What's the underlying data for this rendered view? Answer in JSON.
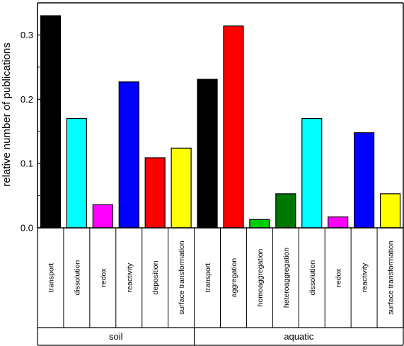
{
  "chart_data": {
    "type": "bar",
    "ylabel": "relative number of publications",
    "ylim": [
      0,
      0.35
    ],
    "yticks": [
      "0.0",
      "0.1",
      "0.2",
      "0.3"
    ],
    "tick_values": [
      0,
      0.1,
      0.2,
      0.3
    ],
    "grid": false,
    "groups": [
      {
        "name": "soil",
        "categories": [
          "transport",
          "dissolution",
          "redox",
          "reactivity",
          "deposition",
          "surface transformation"
        ],
        "values": [
          0.33,
          0.17,
          0.036,
          0.227,
          0.109,
          0.124
        ],
        "colors": [
          "#000000",
          "#00ffff",
          "#ff00ff",
          "#0000ff",
          "#ff0000",
          "#ffff00"
        ]
      },
      {
        "name": "aquatic",
        "categories": [
          "transport",
          "aggregation",
          "homoaggregation",
          "heteroaggregation",
          "dissolution",
          "redox",
          "reactivity",
          "surface transformation"
        ],
        "values": [
          0.231,
          0.314,
          0.013,
          0.053,
          0.17,
          0.017,
          0.148,
          0.053
        ],
        "colors": [
          "#000000",
          "#ff0000",
          "#00cc00",
          "#007700",
          "#00ffff",
          "#ff00ff",
          "#0000ff",
          "#ffff00"
        ]
      }
    ]
  }
}
